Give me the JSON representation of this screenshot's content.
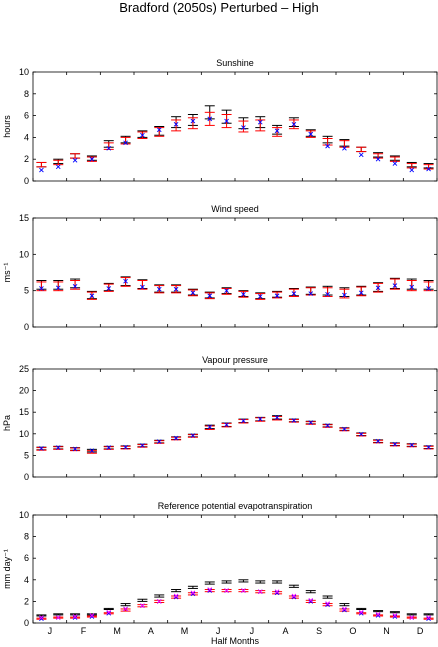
{
  "figure": {
    "title": "Bradford (2050s) Perturbed – High",
    "xlabel": "Half Months",
    "month_labels": [
      "J",
      "F",
      "M",
      "A",
      "M",
      "J",
      "J",
      "A",
      "S",
      "O",
      "N",
      "D"
    ]
  },
  "colors": {
    "black": "#000000",
    "red": "#ff0000",
    "blue": "#0000ff",
    "magenta": "#ff00ff"
  },
  "chart_data": [
    {
      "type": "scatter",
      "title": "Sunshine",
      "ylabel": "hours",
      "ylim": [
        0,
        10
      ],
      "yticks": [
        "0",
        "2",
        "4",
        "6",
        "8",
        "10"
      ],
      "x": [
        1,
        2,
        3,
        4,
        5,
        6,
        7,
        8,
        9,
        10,
        11,
        12,
        13,
        14,
        15,
        16,
        17,
        18,
        19,
        20,
        21,
        22,
        23,
        24
      ],
      "series": [
        {
          "marker": "errorbar",
          "color": "#000000",
          "values": [
            1.5,
            1.8,
            2.3,
            2.1,
            3.4,
            3.8,
            4.3,
            4.6,
            5.4,
            5.6,
            6.3,
            5.9,
            5.3,
            5.4,
            4.7,
            5.4,
            4.4,
            3.8,
            3.5,
            2.9,
            2.4,
            2.1,
            1.5,
            1.4
          ],
          "err": [
            0.2,
            0.2,
            0.2,
            0.2,
            0.3,
            0.3,
            0.3,
            0.4,
            0.5,
            0.5,
            0.6,
            0.6,
            0.5,
            0.5,
            0.4,
            0.4,
            0.3,
            0.3,
            0.3,
            0.2,
            0.2,
            0.2,
            0.2,
            0.2
          ]
        },
        {
          "marker": "errorbar",
          "color": "#ff0000",
          "values": [
            1.5,
            1.7,
            2.3,
            2.0,
            3.2,
            3.7,
            4.2,
            4.5,
            5.1,
            5.3,
            5.7,
            5.5,
            5.0,
            5.1,
            4.5,
            5.2,
            4.3,
            3.6,
            3.4,
            2.9,
            2.3,
            2.0,
            1.4,
            1.3
          ],
          "err": [
            0.2,
            0.2,
            0.2,
            0.2,
            0.3,
            0.3,
            0.3,
            0.4,
            0.5,
            0.5,
            0.6,
            0.6,
            0.5,
            0.5,
            0.4,
            0.4,
            0.3,
            0.3,
            0.3,
            0.2,
            0.2,
            0.2,
            0.2,
            0.2
          ]
        },
        {
          "marker": "x",
          "color": "#0000ff",
          "values": [
            1.0,
            1.3,
            1.9,
            2.0,
            3.0,
            3.5,
            4.2,
            4.7,
            5.2,
            5.5,
            5.7,
            5.5,
            4.9,
            5.4,
            4.6,
            5.2,
            4.3,
            3.2,
            3.0,
            2.4,
            2.0,
            1.6,
            1.0,
            1.1
          ]
        }
      ]
    },
    {
      "type": "scatter",
      "title": "Wind speed",
      "ylabel": "ms⁻¹",
      "ylim": [
        0,
        15
      ],
      "yticks": [
        "0",
        "5",
        "10",
        "15"
      ],
      "x": [
        1,
        2,
        3,
        4,
        5,
        6,
        7,
        8,
        9,
        10,
        11,
        12,
        13,
        14,
        15,
        16,
        17,
        18,
        19,
        20,
        21,
        22,
        23,
        24
      ],
      "series": [
        {
          "marker": "errorbar",
          "color": "#000000",
          "values": [
            5.8,
            5.8,
            6.0,
            4.4,
            5.5,
            6.3,
            5.9,
            5.3,
            5.3,
            4.8,
            4.4,
            5.0,
            4.6,
            4.3,
            4.5,
            4.8,
            5.0,
            5.0,
            4.8,
            5.0,
            5.5,
            6.0,
            5.9,
            5.8
          ],
          "err": [
            0.6,
            0.6,
            0.6,
            0.5,
            0.5,
            0.6,
            0.6,
            0.5,
            0.5,
            0.4,
            0.4,
            0.4,
            0.4,
            0.4,
            0.4,
            0.5,
            0.5,
            0.6,
            0.6,
            0.6,
            0.6,
            0.7,
            0.7,
            0.6
          ]
        },
        {
          "marker": "errorbar",
          "color": "#ff0000",
          "values": [
            5.6,
            5.6,
            5.8,
            4.3,
            5.4,
            6.2,
            5.8,
            5.2,
            5.2,
            4.7,
            4.3,
            4.9,
            4.5,
            4.2,
            4.4,
            4.7,
            4.9,
            4.8,
            4.6,
            4.9,
            5.4,
            5.9,
            5.7,
            5.6
          ],
          "err": [
            0.6,
            0.6,
            0.6,
            0.5,
            0.5,
            0.6,
            0.6,
            0.5,
            0.5,
            0.4,
            0.4,
            0.4,
            0.4,
            0.4,
            0.4,
            0.5,
            0.5,
            0.6,
            0.6,
            0.6,
            0.6,
            0.7,
            0.7,
            0.6
          ]
        },
        {
          "marker": "x",
          "color": "#0000ff",
          "values": [
            5.3,
            5.4,
            5.6,
            4.3,
            5.3,
            6.3,
            5.5,
            5.2,
            5.2,
            4.7,
            4.3,
            5.0,
            4.5,
            4.2,
            4.3,
            4.6,
            4.6,
            4.5,
            4.4,
            4.7,
            5.4,
            5.7,
            5.5,
            5.3
          ]
        }
      ]
    },
    {
      "type": "scatter",
      "title": "Vapour pressure",
      "ylabel": "hPa",
      "ylim": [
        0,
        25
      ],
      "yticks": [
        "0",
        "5",
        "10",
        "15",
        "20",
        "25"
      ],
      "x": [
        1,
        2,
        3,
        4,
        5,
        6,
        7,
        8,
        9,
        10,
        11,
        12,
        13,
        14,
        15,
        16,
        17,
        18,
        19,
        20,
        21,
        22,
        23,
        24
      ],
      "series": [
        {
          "marker": "errorbar",
          "color": "#000000",
          "values": [
            6.6,
            6.8,
            6.5,
            6.1,
            6.8,
            6.9,
            7.3,
            8.2,
            9.0,
            9.6,
            11.6,
            12.1,
            13.0,
            13.4,
            13.8,
            13.1,
            12.6,
            11.9,
            11.1,
            9.9,
            8.3,
            7.6,
            7.4,
            6.9
          ],
          "err": [
            0.3,
            0.3,
            0.3,
            0.3,
            0.3,
            0.3,
            0.3,
            0.3,
            0.3,
            0.3,
            0.4,
            0.4,
            0.4,
            0.4,
            0.4,
            0.3,
            0.3,
            0.3,
            0.3,
            0.3,
            0.3,
            0.3,
            0.3,
            0.3
          ]
        },
        {
          "marker": "errorbar",
          "color": "#ff0000",
          "values": [
            6.5,
            6.7,
            6.4,
            5.8,
            6.7,
            6.8,
            7.2,
            8.1,
            8.9,
            9.5,
            11.4,
            12.0,
            12.9,
            13.3,
            13.6,
            13.0,
            12.5,
            11.8,
            11.0,
            9.8,
            8.2,
            7.5,
            7.3,
            6.8
          ],
          "err": [
            0.3,
            0.3,
            0.3,
            0.3,
            0.3,
            0.3,
            0.3,
            0.3,
            0.3,
            0.3,
            0.4,
            0.4,
            0.4,
            0.4,
            0.4,
            0.3,
            0.3,
            0.3,
            0.3,
            0.3,
            0.3,
            0.3,
            0.3,
            0.3
          ]
        },
        {
          "marker": "x",
          "color": "#0000ff",
          "values": [
            6.6,
            6.8,
            6.5,
            6.1,
            6.8,
            6.9,
            7.3,
            8.2,
            9.0,
            9.6,
            11.6,
            12.1,
            13.0,
            13.4,
            13.8,
            13.1,
            12.6,
            11.9,
            11.1,
            9.9,
            8.3,
            7.6,
            7.4,
            6.9
          ]
        }
      ]
    },
    {
      "type": "scatter",
      "title": "Reference potential evapotranspiration",
      "ylabel": "mm day⁻¹",
      "ylim": [
        0,
        10
      ],
      "yticks": [
        "0",
        "2",
        "4",
        "6",
        "8",
        "10"
      ],
      "x": [
        1,
        2,
        3,
        4,
        5,
        6,
        7,
        8,
        9,
        10,
        11,
        12,
        13,
        14,
        15,
        16,
        17,
        18,
        19,
        20,
        21,
        22,
        23,
        24
      ],
      "series": [
        {
          "marker": "errorbar",
          "color": "#000000",
          "values": [
            0.7,
            0.8,
            0.8,
            0.8,
            1.3,
            1.7,
            2.1,
            2.5,
            3.0,
            3.3,
            3.7,
            3.8,
            3.9,
            3.8,
            3.8,
            3.4,
            2.9,
            2.4,
            1.7,
            1.3,
            1.1,
            1.0,
            0.8,
            0.8
          ],
          "err": [
            0.05,
            0.05,
            0.05,
            0.05,
            0.05,
            0.1,
            0.1,
            0.1,
            0.1,
            0.1,
            0.1,
            0.1,
            0.1,
            0.1,
            0.1,
            0.1,
            0.1,
            0.1,
            0.1,
            0.05,
            0.05,
            0.05,
            0.05,
            0.05
          ]
        },
        {
          "marker": "errorbar",
          "color": "#ff0000",
          "values": [
            0.4,
            0.5,
            0.5,
            0.6,
            0.9,
            1.2,
            1.6,
            2.0,
            2.4,
            2.7,
            3.0,
            3.0,
            3.0,
            2.9,
            2.8,
            2.4,
            2.0,
            1.7,
            1.2,
            0.9,
            0.7,
            0.6,
            0.5,
            0.4
          ],
          "err": [
            0.05,
            0.05,
            0.05,
            0.05,
            0.05,
            0.1,
            0.1,
            0.1,
            0.1,
            0.1,
            0.1,
            0.1,
            0.1,
            0.1,
            0.1,
            0.1,
            0.1,
            0.1,
            0.1,
            0.05,
            0.05,
            0.05,
            0.05,
            0.05
          ]
        },
        {
          "marker": "x",
          "color": "#0000ff",
          "values": [
            0.4,
            0.5,
            0.5,
            0.6,
            0.9,
            1.3,
            1.6,
            2.0,
            2.4,
            2.7,
            3.0,
            3.0,
            3.0,
            2.9,
            2.8,
            2.4,
            2.0,
            1.7,
            1.2,
            0.9,
            0.7,
            0.6,
            0.5,
            0.4
          ]
        },
        {
          "marker": "x",
          "color": "#ff00ff",
          "values": [
            0.5,
            0.5,
            0.6,
            0.7,
            1.0,
            1.3,
            1.6,
            2.0,
            2.5,
            2.8,
            3.1,
            3.0,
            3.0,
            2.9,
            2.9,
            2.5,
            2.1,
            1.8,
            1.3,
            1.0,
            0.8,
            0.7,
            0.5,
            0.5
          ]
        }
      ]
    }
  ]
}
